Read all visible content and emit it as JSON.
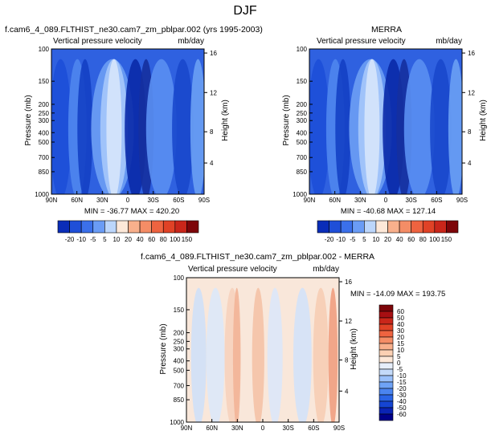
{
  "title": "DJF",
  "colors": {
    "neg": [
      "#00008a",
      "#0a23b4",
      "#1545d2",
      "#2a64e6",
      "#4a84f0",
      "#6fa3f6",
      "#9ac0fa",
      "#c4daf9",
      "#e6eefa"
    ],
    "pos": [
      "#fde8d8",
      "#fbd0b3",
      "#f8b08c",
      "#f48d66",
      "#ee6340",
      "#e04226",
      "#c9261a",
      "#a70f12",
      "#7d0509"
    ]
  },
  "chart_data": [
    {
      "type": "heatmap",
      "title": "f.cam6_4_089.FLTHIST_ne30.cam7_zm_pblpar.002 (yrs 1995-2003)",
      "variable_label": "Vertical pressure velocity",
      "units_label": "mb/day",
      "ylabel": "Pressure (mb)",
      "y2label": "Height (km)",
      "x_ticks": [
        "90N",
        "60N",
        "30N",
        "0",
        "30S",
        "60S",
        "90S"
      ],
      "y_ticks": [
        "100",
        "150",
        "200",
        "250",
        "300",
        "400",
        "500",
        "700",
        "850",
        "1000"
      ],
      "y2_ticks": [
        "16",
        "12",
        "8",
        "4"
      ],
      "stats": "MIN = -36.77  MAX = 420.20",
      "colorbar_labels": [
        "-20",
        "-10",
        "-5",
        "5",
        "10",
        "20",
        "40",
        "60",
        "80",
        "100",
        "150"
      ]
    },
    {
      "type": "heatmap",
      "title": "MERRA",
      "variable_label": "Vertical pressure velocity",
      "units_label": "mb/day",
      "ylabel": "Pressure (mb)",
      "y2label": "Height (km)",
      "x_ticks": [
        "90N",
        "60N",
        "30N",
        "0",
        "30S",
        "60S",
        "90S"
      ],
      "y_ticks": [
        "100",
        "150",
        "200",
        "250",
        "300",
        "400",
        "500",
        "700",
        "850",
        "1000"
      ],
      "y2_ticks": [
        "16",
        "12",
        "8",
        "4"
      ],
      "stats": "MIN = -40.68  MAX = 127.14",
      "colorbar_labels": [
        "-20",
        "-10",
        "-5",
        "5",
        "10",
        "20",
        "40",
        "60",
        "80",
        "100",
        "150"
      ]
    },
    {
      "type": "heatmap",
      "title": "f.cam6_4_089.FLTHIST_ne30.cam7_zm_pblpar.002 - MERRA",
      "variable_label": "Vertical pressure velocity",
      "units_label": "mb/day",
      "ylabel": "Pressure (mb)",
      "y2label": "Height (km)",
      "x_ticks": [
        "90N",
        "60N",
        "30N",
        "0",
        "30S",
        "60S",
        "90S"
      ],
      "y_ticks": [
        "100",
        "150",
        "200",
        "250",
        "300",
        "400",
        "500",
        "700",
        "850",
        "1000"
      ],
      "y2_ticks": [
        "16",
        "12",
        "8",
        "4"
      ],
      "stats": "MIN = -14.09  MAX = 193.75",
      "colorbar_labels": [
        "60",
        "50",
        "40",
        "30",
        "20",
        "15",
        "10",
        "5",
        "0",
        "-5",
        "-10",
        "-15",
        "-20",
        "-30",
        "-40",
        "-50",
        "-60"
      ]
    }
  ]
}
